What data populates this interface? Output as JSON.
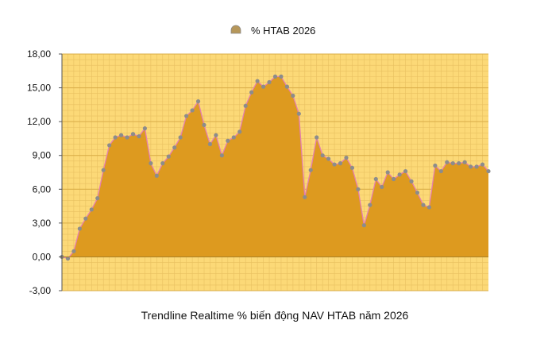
{
  "chart_data": {
    "type": "area",
    "title": "Trendline Realtime % biến động NAV HTAB năm 2026",
    "legend": {
      "position": "top-center"
    },
    "grid": true,
    "ylim": [
      -3,
      18
    ],
    "y_ticks": [
      "-3,00",
      "0,00",
      "3,00",
      "6,00",
      "9,00",
      "12,00",
      "15,00",
      "18,00"
    ],
    "colors": {
      "plot_background": "#fcd977",
      "grid_minor": "#e8c060",
      "grid_major": "#d9ac47",
      "area_fill": "#dd9a1f",
      "line": "#e57fb0",
      "marker": "#8c8c8c",
      "legend_marker": "#b6975a"
    },
    "series": [
      {
        "name": "% HTAB 2026",
        "values": [
          0.0,
          -0.15,
          0.5,
          2.5,
          3.4,
          4.2,
          5.2,
          7.7,
          9.9,
          10.6,
          10.8,
          10.6,
          10.9,
          10.7,
          11.4,
          8.3,
          7.2,
          8.3,
          8.9,
          9.7,
          10.6,
          12.5,
          13.0,
          13.8,
          11.7,
          10.0,
          10.8,
          9.0,
          10.3,
          10.6,
          11.1,
          13.4,
          14.6,
          15.6,
          15.1,
          15.5,
          16.0,
          16.0,
          15.1,
          14.3,
          12.7,
          5.3,
          7.7,
          10.6,
          9.0,
          8.7,
          8.2,
          8.3,
          8.8,
          7.9,
          6.0,
          2.8,
          4.6,
          6.9,
          6.2,
          7.5,
          6.9,
          7.3,
          7.6,
          6.7,
          5.7,
          4.6,
          4.4,
          8.1,
          7.6,
          8.4,
          8.3,
          8.3,
          8.4,
          8.0,
          8.0,
          8.2,
          7.6
        ]
      }
    ]
  }
}
